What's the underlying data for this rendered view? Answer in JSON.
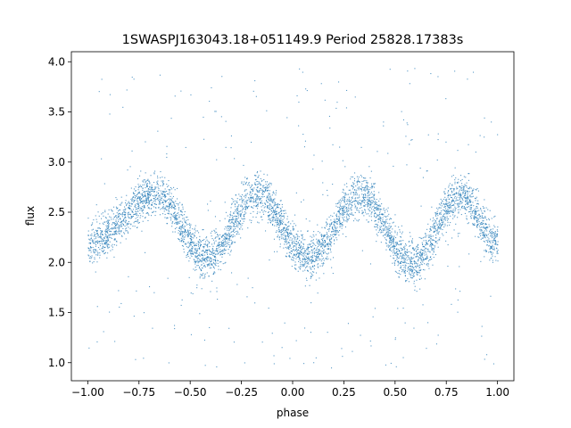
{
  "chart_data": {
    "type": "scatter",
    "title": "1SWASPJ163043.18+051149.9 Period 25828.17383s",
    "xlabel": "phase",
    "ylabel": "flux",
    "xlim": [
      -1.08,
      1.08
    ],
    "ylim": [
      0.82,
      4.1
    ],
    "xticks": [
      -1.0,
      -0.75,
      -0.5,
      -0.25,
      0.0,
      0.25,
      0.5,
      0.75,
      1.0
    ],
    "xtick_labels": [
      "−1.00",
      "−0.75",
      "−0.50",
      "−0.25",
      "0.00",
      "0.25",
      "0.50",
      "0.75",
      "1.00"
    ],
    "yticks": [
      1.0,
      1.5,
      2.0,
      2.5,
      3.0,
      3.5,
      4.0
    ],
    "ytick_labels": [
      "1.0",
      "1.5",
      "2.0",
      "2.5",
      "3.0",
      "3.5",
      "4.0"
    ],
    "grid": false,
    "legend": "none",
    "point_color": "#1f77b4",
    "light_curve": {
      "phase_range": [
        -1.0,
        1.0
      ],
      "mean_flux": 2.35,
      "maxima_phase": [
        -0.67,
        -0.18,
        0.33,
        0.82
      ],
      "maxima_flux": 2.68,
      "minima_phase": [
        -1.0,
        -0.42,
        0.08,
        0.58,
        1.0
      ],
      "minima_flux": [
        2.2,
        2.05,
        2.05,
        2.0,
        2.2
      ],
      "scatter_band_halfwidth": 0.28,
      "outlier_flux_range": [
        0.95,
        3.95
      ]
    }
  }
}
